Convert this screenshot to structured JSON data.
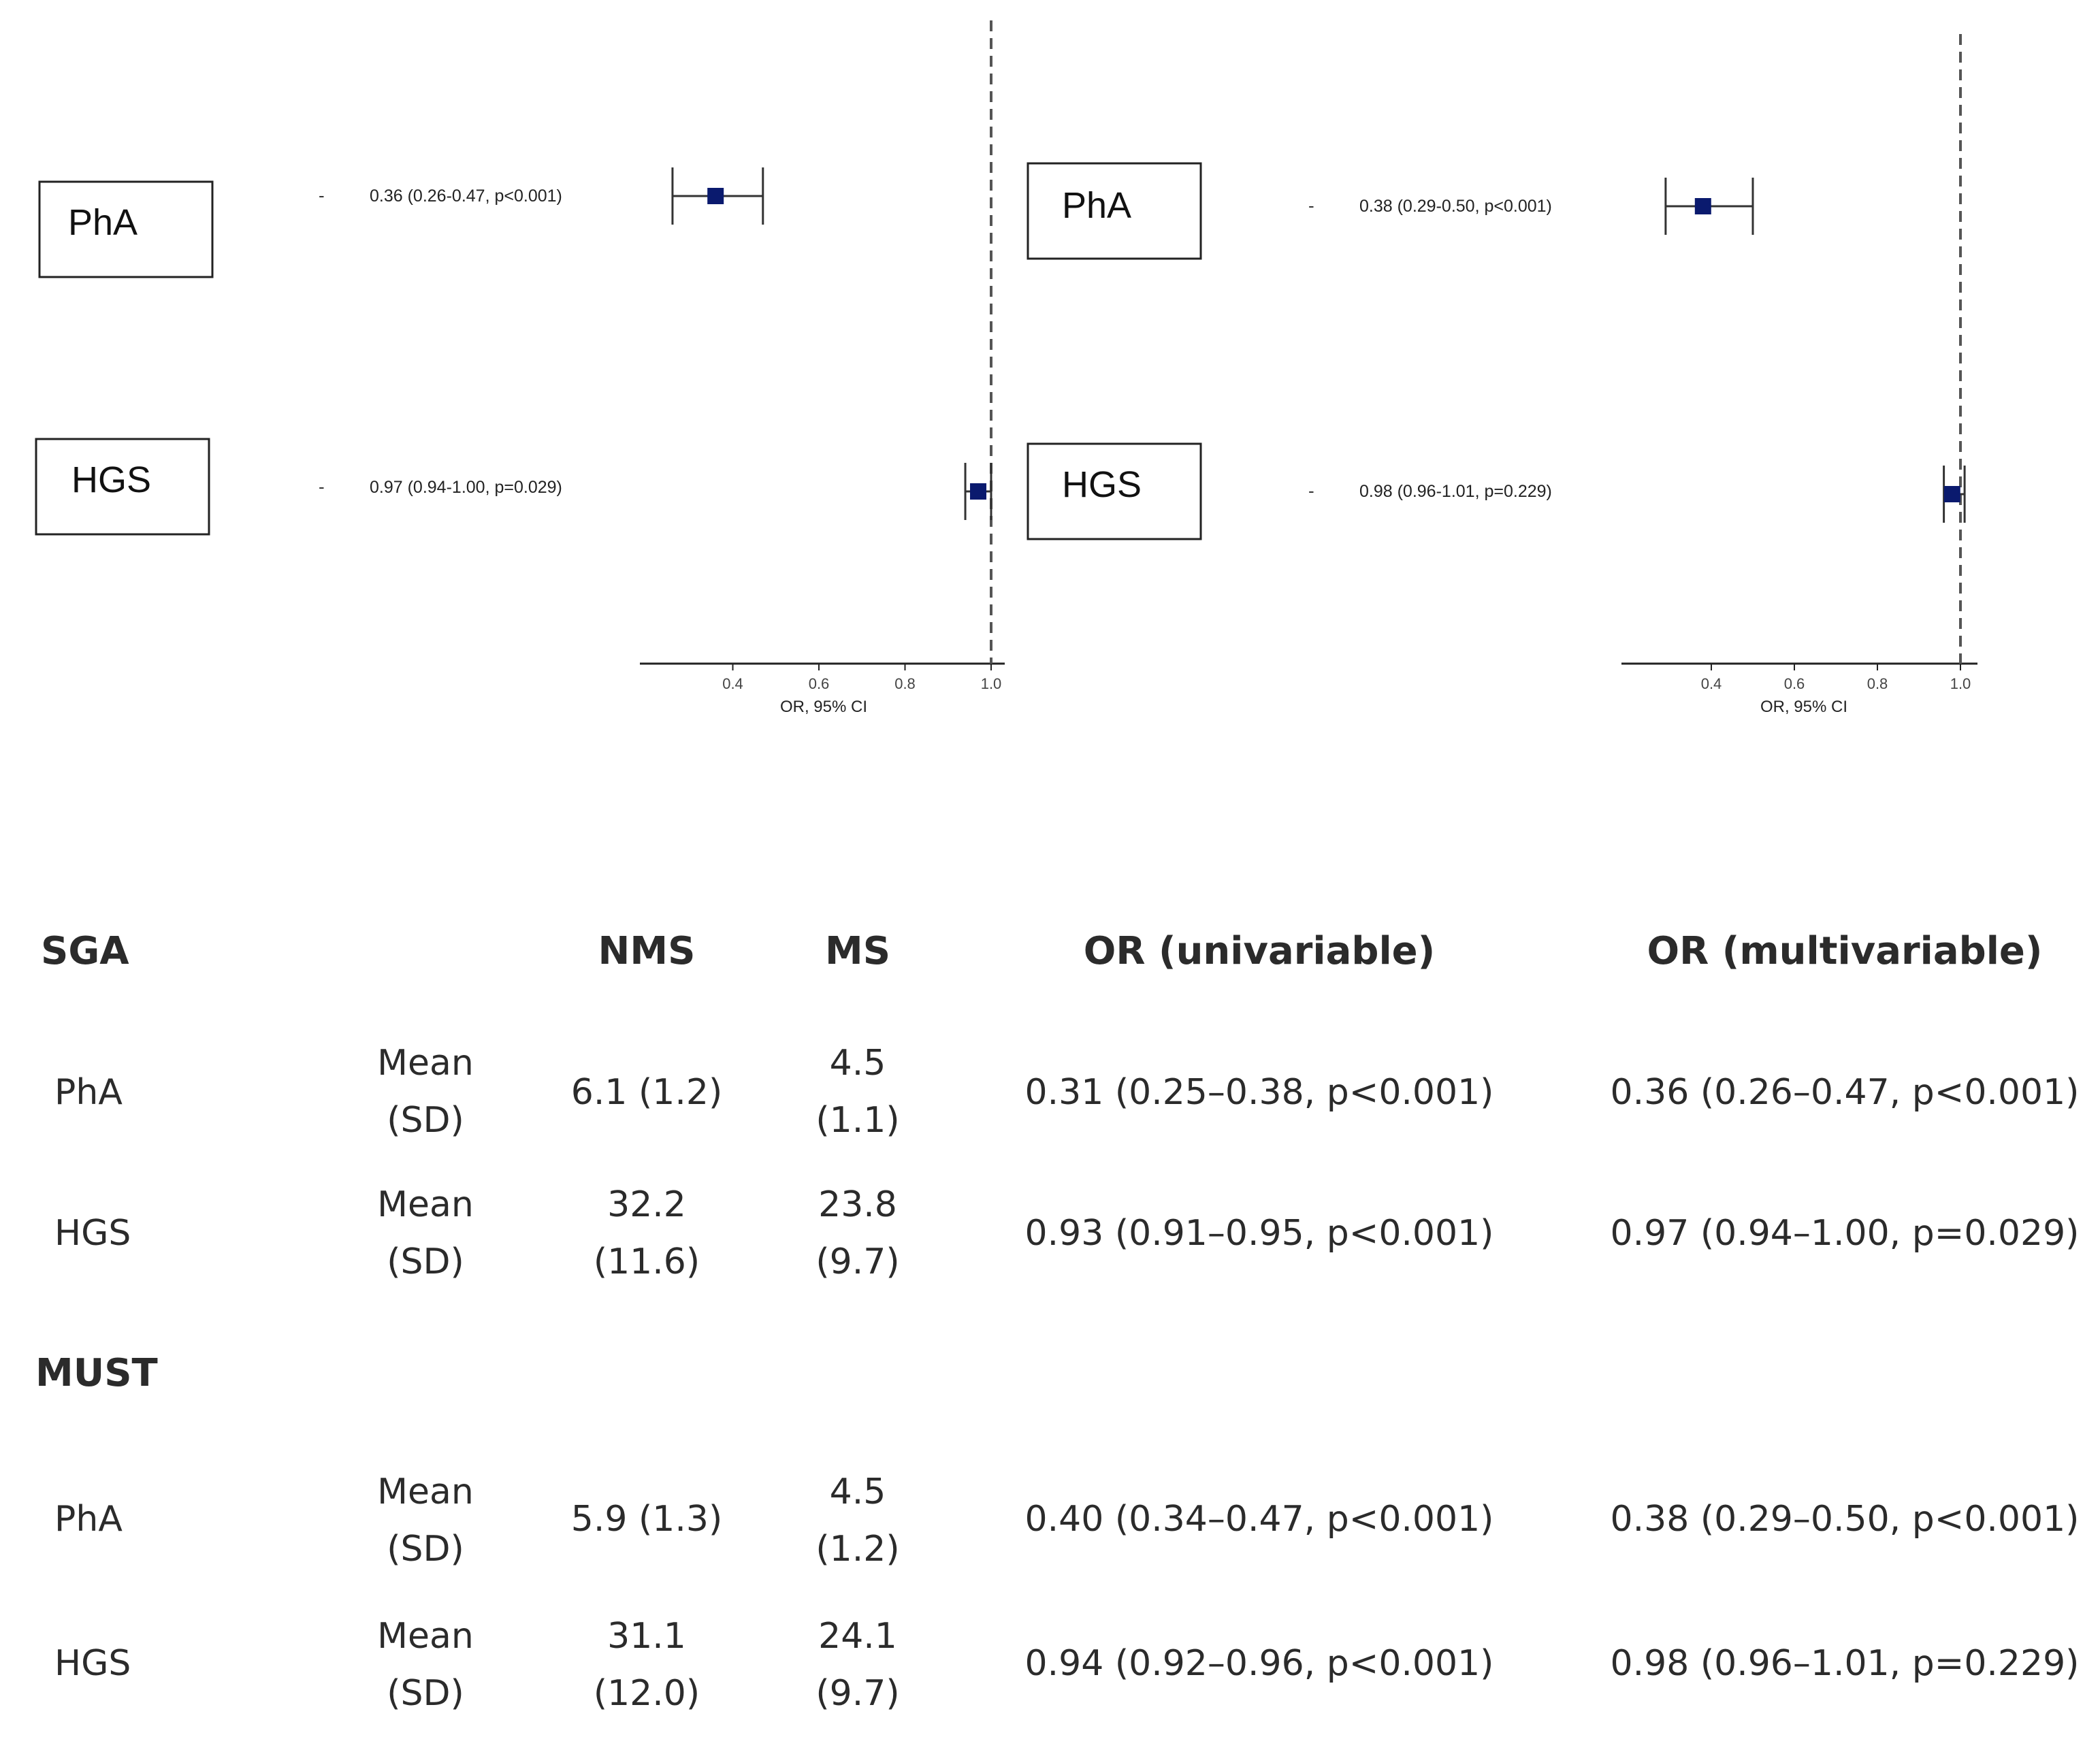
{
  "chart_data": [
    {
      "type": "forest",
      "panel": "SGA",
      "xlabel": "OR, 95% CI",
      "ticks": [
        0.4,
        0.6,
        0.8,
        1.0
      ],
      "tick_labels": [
        "0.4",
        "0.6",
        "0.8",
        "1.0"
      ],
      "xlim": [
        0.2,
        1.02
      ],
      "reference_line": 1.0,
      "rows": [
        {
          "label": "PhA",
          "or": 0.36,
          "lower": 0.26,
          "upper": 0.47,
          "text": "0.36 (0.26-0.47, p<0.001)",
          "dash": "-"
        },
        {
          "label": "HGS",
          "or": 0.97,
          "lower": 0.94,
          "upper": 1.0,
          "text": "0.97 (0.94-1.00, p=0.029)",
          "dash": "-"
        }
      ]
    },
    {
      "type": "forest",
      "panel": "MUST",
      "xlabel": "OR, 95% CI",
      "ticks": [
        0.4,
        0.6,
        0.8,
        1.0
      ],
      "tick_labels": [
        "0.4",
        "0.6",
        "0.8",
        "1.0"
      ],
      "xlim": [
        0.2,
        1.02
      ],
      "reference_line": 1.0,
      "rows": [
        {
          "label": "PhA",
          "or": 0.38,
          "lower": 0.29,
          "upper": 0.5,
          "text": "0.38 (0.29-0.50, p<0.001)",
          "dash": "-"
        },
        {
          "label": "HGS",
          "or": 0.98,
          "lower": 0.96,
          "upper": 1.01,
          "text": "0.98 (0.96-1.01, p=0.229)",
          "dash": "-"
        }
      ]
    }
  ],
  "table": {
    "headers": {
      "group1": "SGA",
      "nms": "NMS",
      "ms": "MS",
      "or_uni": "OR (univariable)",
      "or_multi": "OR (multivariable)"
    },
    "group2_title": "MUST",
    "stat_line1": "Mean",
    "stat_line2": "(SD)",
    "sga_rows": [
      {
        "name": "PhA",
        "nms_1": "6.1 (1.2)",
        "nms_2": "",
        "ms_1": "4.5",
        "ms_2": "(1.1)",
        "or_uni": "0.31 (0.25–0.38, p<0.001)",
        "or_multi": "0.36 (0.26–0.47, p<0.001)"
      },
      {
        "name": "HGS",
        "nms_1": "32.2",
        "nms_2": "(11.6)",
        "ms_1": "23.8",
        "ms_2": "(9.7)",
        "or_uni": "0.93 (0.91–0.95, p<0.001)",
        "or_multi": "0.97 (0.94–1.00, p=0.029)"
      }
    ],
    "must_rows": [
      {
        "name": "PhA",
        "nms_1": "5.9 (1.3)",
        "nms_2": "",
        "ms_1": "4.5",
        "ms_2": "(1.2)",
        "or_uni": "0.40 (0.34–0.47, p<0.001)",
        "or_multi": "0.38 (0.29–0.50, p<0.001)"
      },
      {
        "name": "HGS",
        "nms_1": "31.1",
        "nms_2": "(12.0)",
        "ms_1": "24.1",
        "ms_2": "(9.7)",
        "or_uni": "0.94 (0.92–0.96, p<0.001)",
        "or_multi": "0.98 (0.96–1.01, p=0.229)"
      }
    ]
  }
}
